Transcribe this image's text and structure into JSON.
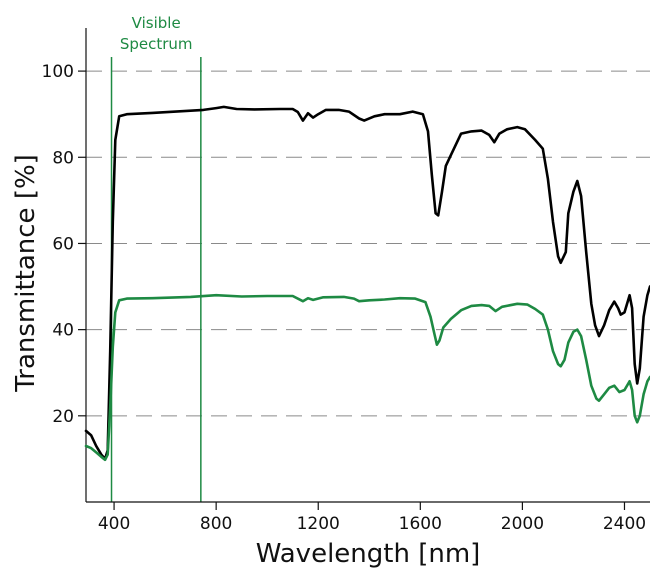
{
  "chart_data": {
    "type": "line",
    "title": "",
    "xlabel": "Wavelength [nm]",
    "ylabel": "Transmittance [%]",
    "xlim": [
      290,
      2500
    ],
    "ylim": [
      0,
      110
    ],
    "x_ticks": [
      400,
      800,
      1200,
      1600,
      2000,
      2400
    ],
    "y_ticks": [
      20,
      40,
      60,
      80,
      100
    ],
    "grid": "horizontal dashed",
    "legend": "none",
    "annotation": {
      "text_lines": [
        "Visible",
        "Spectrum"
      ],
      "x_range": [
        390,
        740
      ],
      "color": "#1e8a43"
    },
    "series": [
      {
        "color": "#000000",
        "points": [
          [
            290,
            16.5
          ],
          [
            310,
            15.5
          ],
          [
            330,
            13
          ],
          [
            350,
            11
          ],
          [
            365,
            10
          ],
          [
            375,
            12
          ],
          [
            385,
            35
          ],
          [
            395,
            65
          ],
          [
            405,
            84
          ],
          [
            420,
            89.5
          ],
          [
            450,
            90
          ],
          [
            550,
            90.3
          ],
          [
            700,
            90.8
          ],
          [
            750,
            91
          ],
          [
            800,
            91.4
          ],
          [
            830,
            91.7
          ],
          [
            880,
            91.2
          ],
          [
            950,
            91.1
          ],
          [
            1050,
            91.2
          ],
          [
            1100,
            91.2
          ],
          [
            1120,
            90.5
          ],
          [
            1140,
            88.5
          ],
          [
            1160,
            90.2
          ],
          [
            1180,
            89.2
          ],
          [
            1200,
            90
          ],
          [
            1230,
            91
          ],
          [
            1280,
            91
          ],
          [
            1320,
            90.6
          ],
          [
            1360,
            89
          ],
          [
            1380,
            88.5
          ],
          [
            1420,
            89.5
          ],
          [
            1460,
            90
          ],
          [
            1520,
            90
          ],
          [
            1570,
            90.6
          ],
          [
            1610,
            90
          ],
          [
            1630,
            86
          ],
          [
            1645,
            76
          ],
          [
            1660,
            67
          ],
          [
            1670,
            66.5
          ],
          [
            1685,
            72
          ],
          [
            1700,
            78
          ],
          [
            1720,
            80.5
          ],
          [
            1740,
            83
          ],
          [
            1760,
            85.5
          ],
          [
            1800,
            86
          ],
          [
            1840,
            86.2
          ],
          [
            1870,
            85.2
          ],
          [
            1890,
            83.5
          ],
          [
            1910,
            85.5
          ],
          [
            1940,
            86.5
          ],
          [
            1980,
            87
          ],
          [
            2010,
            86.5
          ],
          [
            2050,
            84
          ],
          [
            2080,
            82
          ],
          [
            2100,
            75
          ],
          [
            2120,
            65
          ],
          [
            2140,
            57
          ],
          [
            2150,
            55.5
          ],
          [
            2170,
            58
          ],
          [
            2180,
            67
          ],
          [
            2200,
            72
          ],
          [
            2215,
            74.5
          ],
          [
            2230,
            71
          ],
          [
            2250,
            58
          ],
          [
            2270,
            46
          ],
          [
            2285,
            41
          ],
          [
            2300,
            38.5
          ],
          [
            2320,
            41
          ],
          [
            2340,
            44.5
          ],
          [
            2360,
            46.5
          ],
          [
            2375,
            45
          ],
          [
            2385,
            43.5
          ],
          [
            2400,
            44
          ],
          [
            2420,
            48
          ],
          [
            2430,
            45
          ],
          [
            2440,
            32
          ],
          [
            2450,
            27.5
          ],
          [
            2460,
            31
          ],
          [
            2475,
            43
          ],
          [
            2490,
            48
          ],
          [
            2500,
            50
          ]
        ]
      },
      {
        "color": "#1e8a43",
        "points": [
          [
            290,
            13
          ],
          [
            310,
            12.5
          ],
          [
            330,
            11.5
          ],
          [
            350,
            10.5
          ],
          [
            365,
            9.8
          ],
          [
            375,
            11
          ],
          [
            385,
            22
          ],
          [
            395,
            36
          ],
          [
            405,
            44
          ],
          [
            420,
            46.8
          ],
          [
            450,
            47.2
          ],
          [
            550,
            47.3
          ],
          [
            700,
            47.6
          ],
          [
            800,
            48
          ],
          [
            900,
            47.7
          ],
          [
            1000,
            47.8
          ],
          [
            1100,
            47.8
          ],
          [
            1140,
            46.6
          ],
          [
            1160,
            47.3
          ],
          [
            1180,
            46.9
          ],
          [
            1220,
            47.5
          ],
          [
            1300,
            47.6
          ],
          [
            1340,
            47.2
          ],
          [
            1360,
            46.6
          ],
          [
            1400,
            46.8
          ],
          [
            1460,
            47
          ],
          [
            1520,
            47.3
          ],
          [
            1580,
            47.2
          ],
          [
            1620,
            46.4
          ],
          [
            1640,
            43
          ],
          [
            1655,
            39
          ],
          [
            1665,
            36.5
          ],
          [
            1675,
            37.5
          ],
          [
            1690,
            40.5
          ],
          [
            1720,
            42.5
          ],
          [
            1760,
            44.5
          ],
          [
            1800,
            45.5
          ],
          [
            1840,
            45.7
          ],
          [
            1870,
            45.5
          ],
          [
            1895,
            44.3
          ],
          [
            1920,
            45.3
          ],
          [
            1980,
            46
          ],
          [
            2020,
            45.8
          ],
          [
            2050,
            44.8
          ],
          [
            2080,
            43.5
          ],
          [
            2100,
            40
          ],
          [
            2120,
            35
          ],
          [
            2140,
            32
          ],
          [
            2150,
            31.5
          ],
          [
            2165,
            33
          ],
          [
            2180,
            37
          ],
          [
            2200,
            39.5
          ],
          [
            2215,
            40
          ],
          [
            2230,
            38.5
          ],
          [
            2250,
            33
          ],
          [
            2270,
            27
          ],
          [
            2290,
            24
          ],
          [
            2300,
            23.5
          ],
          [
            2320,
            25
          ],
          [
            2340,
            26.5
          ],
          [
            2360,
            27
          ],
          [
            2380,
            25.5
          ],
          [
            2400,
            26
          ],
          [
            2420,
            28
          ],
          [
            2430,
            26
          ],
          [
            2440,
            20
          ],
          [
            2450,
            18.5
          ],
          [
            2460,
            20
          ],
          [
            2475,
            25
          ],
          [
            2490,
            28
          ],
          [
            2500,
            29
          ]
        ]
      }
    ]
  }
}
